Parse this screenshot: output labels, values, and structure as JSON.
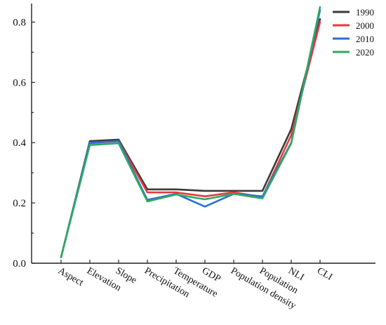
{
  "chart_data": {
    "type": "line",
    "title": "",
    "xlabel": "",
    "ylabel": "",
    "categories": [
      "Aspect",
      "Elevation",
      "Slope",
      "Precipitation",
      "Temperature",
      "GDP",
      "Population density",
      "Population",
      "NLI",
      "CLI"
    ],
    "ylim": [
      0,
      0.85
    ],
    "yticks": [
      0.0,
      0.2,
      0.4,
      0.6,
      0.8
    ],
    "ytick_labels": [
      "0.0",
      "0.2",
      "0.4",
      "0.6",
      "0.8"
    ],
    "grid": false,
    "legend_position": "top-right",
    "series": [
      {
        "name": "1990",
        "color": "#3a3a3a",
        "values": [
          0.02,
          0.405,
          0.41,
          0.245,
          0.245,
          0.24,
          0.24,
          0.24,
          0.445,
          0.81
        ]
      },
      {
        "name": "2000",
        "color": "#e8393a",
        "values": [
          0.02,
          0.398,
          0.405,
          0.235,
          0.235,
          0.222,
          0.235,
          0.22,
          0.425,
          0.8
        ]
      },
      {
        "name": "2010",
        "color": "#2a6fdb",
        "values": [
          0.02,
          0.4,
          0.405,
          0.21,
          0.23,
          0.188,
          0.23,
          0.222,
          0.4,
          0.84
        ]
      },
      {
        "name": "2020",
        "color": "#2eaa62",
        "values": [
          0.02,
          0.392,
          0.398,
          0.205,
          0.228,
          0.212,
          0.23,
          0.215,
          0.398,
          0.85
        ]
      }
    ]
  }
}
